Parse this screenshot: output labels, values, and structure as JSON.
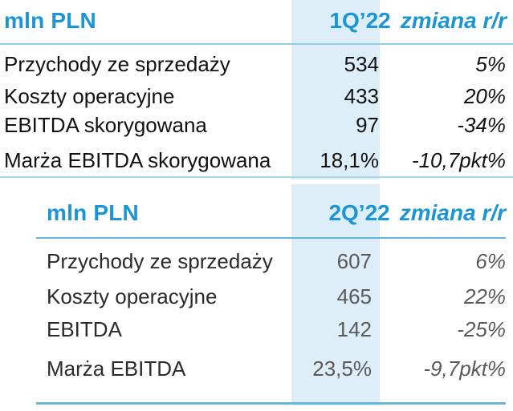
{
  "colors": {
    "header_blue": "#1b95d3",
    "column_band": "#ddeef8",
    "rule_light_blue": "#96ceea",
    "rule_teal_blue": "#66b7db",
    "table1_text": "#121212",
    "table2_label_text": "#2b2b2b",
    "table2_value_text": "#595959"
  },
  "tables": [
    {
      "unit_label": "mln PLN",
      "period_label": "1Q’22",
      "change_label": "zmiana r/r",
      "rows": [
        {
          "label": "Przychody ze sprzedaży",
          "value": "534",
          "change": "5%"
        },
        {
          "label": "Koszty operacyjne",
          "value": "433",
          "change": "20%"
        },
        {
          "label": "EBITDA skorygowana",
          "value": "97",
          "change": "-34%"
        },
        {
          "label": "Marża EBITDA skorygowana",
          "value": "18,1%",
          "change": "-10,7pkt%"
        }
      ]
    },
    {
      "unit_label": "mln PLN",
      "period_label": "2Q’22",
      "change_label": "zmiana r/r",
      "rows": [
        {
          "label": "Przychody ze sprzedaży",
          "value": "607",
          "change": "6%"
        },
        {
          "label": "Koszty operacyjne",
          "value": "465",
          "change": "22%"
        },
        {
          "label": "EBITDA",
          "value": "142",
          "change": "-25%"
        },
        {
          "label": "Marża EBITDA",
          "value": "23,5%",
          "change": "-9,7pkt%"
        }
      ]
    }
  ]
}
